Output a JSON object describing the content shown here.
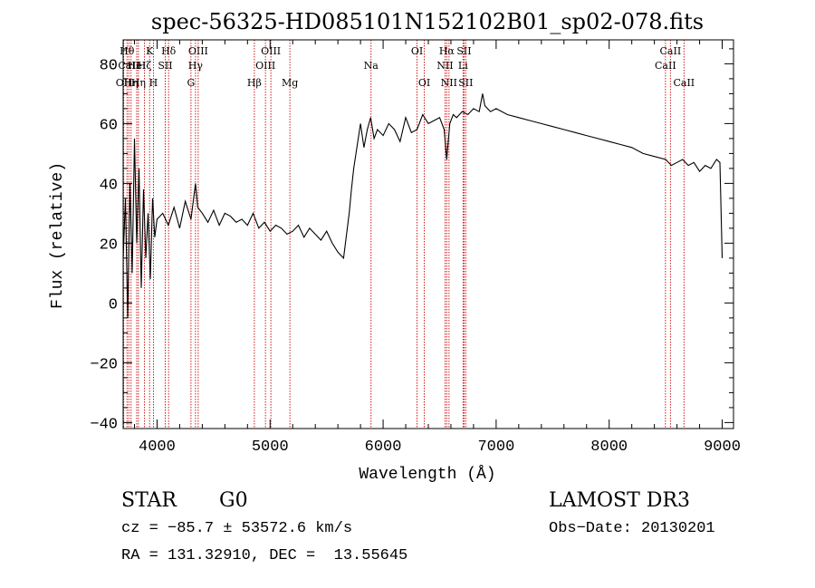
{
  "chart_data": {
    "type": "line",
    "title": "spec-56325-HD085101N152102B01_sp02-078.fits",
    "xlabel": "Wavelength (Å)",
    "ylabel": "Flux (relative)",
    "xlim": [
      3700,
      9100
    ],
    "ylim": [
      -42,
      88
    ],
    "xticks": [
      4000,
      5000,
      6000,
      7000,
      8000,
      9000
    ],
    "yticks": [
      -40,
      -20,
      0,
      20,
      40,
      60,
      80
    ],
    "grid": false,
    "legend": "none",
    "line_color": "#000000",
    "marker_color": "#cc0000",
    "series": [
      {
        "x": [
          3700,
          3720,
          3740,
          3760,
          3780,
          3800,
          3820,
          3840,
          3860,
          3880,
          3900,
          3920,
          3940,
          3960,
          3980,
          4000,
          4050,
          4100,
          4150,
          4200,
          4250,
          4300,
          4340,
          4360,
          4400,
          4450,
          4500,
          4550,
          4600,
          4650,
          4700,
          4750,
          4800,
          4850,
          4900,
          4950,
          5000,
          5050,
          5100,
          5150,
          5200,
          5250,
          5300,
          5350,
          5400,
          5450,
          5500,
          5550,
          5600,
          5650,
          5700,
          5720,
          5740,
          5760,
          5780,
          5800,
          5830,
          5860,
          5890,
          5920,
          5950,
          6000,
          6050,
          6100,
          6150,
          6200,
          6250,
          6300,
          6350,
          6400,
          6450,
          6500,
          6540,
          6563,
          6590,
          6620,
          6650,
          6700,
          6750,
          6800,
          6850,
          6880,
          6900,
          6950,
          7000,
          7100,
          7200,
          7300,
          7400,
          7500,
          7600,
          7700,
          7800,
          7900,
          8000,
          8100,
          8200,
          8300,
          8400,
          8500,
          8550,
          8600,
          8650,
          8700,
          8750,
          8800,
          8850,
          8900,
          8950,
          8980,
          9000
        ],
        "y": [
          15,
          35,
          -5,
          40,
          10,
          55,
          20,
          45,
          5,
          38,
          15,
          30,
          8,
          35,
          22,
          28,
          30,
          26,
          32,
          25,
          34,
          28,
          40,
          32,
          30,
          27,
          31,
          26,
          30,
          29,
          27,
          28,
          26,
          30,
          25,
          27,
          24,
          26,
          25,
          23,
          24,
          26,
          22,
          25,
          23,
          21,
          24,
          20,
          17,
          15,
          30,
          38,
          45,
          50,
          55,
          60,
          52,
          58,
          62,
          55,
          58,
          56,
          60,
          58,
          54,
          62,
          57,
          58,
          63,
          60,
          61,
          62,
          58,
          48,
          60,
          63,
          62,
          64,
          63,
          65,
          64,
          70,
          66,
          64,
          65,
          63,
          62,
          61,
          60,
          59,
          58,
          57,
          56,
          55,
          54,
          53,
          52,
          50,
          49,
          48,
          46,
          47,
          48,
          46,
          47,
          44,
          46,
          45,
          48,
          47,
          15
        ]
      }
    ],
    "lines": [
      {
        "x": 3705,
        "top": "OII",
        "row": 3
      },
      {
        "x": 3734,
        "top": "Hθ",
        "row": 1
      },
      {
        "x": 3750,
        "top": "CaII",
        "row": 2
      },
      {
        "x": 3770,
        "top": "Hη",
        "row": 3
      },
      {
        "x": 3820,
        "top": "HeI",
        "row": 2
      },
      {
        "x": 3835,
        "top": "Hη",
        "row": 3
      },
      {
        "x": 3889,
        "top": "Hζ",
        "row": 2
      },
      {
        "x": 3934,
        "top": "K",
        "row": 1
      },
      {
        "x": 3968,
        "top": "H",
        "row": 3
      },
      {
        "x": 4072,
        "top": "SII",
        "row": 2
      },
      {
        "x": 4102,
        "top": "Hδ",
        "row": 1
      },
      {
        "x": 4300,
        "top": "G",
        "row": 3
      },
      {
        "x": 4340,
        "top": "Hγ",
        "row": 2
      },
      {
        "x": 4364,
        "top": "OIII",
        "row": 1
      },
      {
        "x": 4861,
        "top": "Hβ",
        "row": 3
      },
      {
        "x": 4959,
        "top": "OIII",
        "row": 2
      },
      {
        "x": 5007,
        "top": "OIII",
        "row": 1
      },
      {
        "x": 5175,
        "top": "Mg",
        "row": 3
      },
      {
        "x": 5893,
        "top": "Na",
        "row": 2
      },
      {
        "x": 6300,
        "top": "OI",
        "row": 1
      },
      {
        "x": 6364,
        "top": "OI",
        "row": 3
      },
      {
        "x": 6548,
        "top": "NII",
        "row": 2
      },
      {
        "x": 6563,
        "top": "Hα",
        "row": 1
      },
      {
        "x": 6583,
        "top": "NII",
        "row": 3
      },
      {
        "x": 6707,
        "top": "Li",
        "row": 2
      },
      {
        "x": 6716,
        "top": "SII",
        "row": 1
      },
      {
        "x": 6731,
        "top": "SII",
        "row": 3
      },
      {
        "x": 8498,
        "top": "CaII",
        "row": 2
      },
      {
        "x": 8542,
        "top": "CaII",
        "row": 1
      },
      {
        "x": 8662,
        "top": "CaII",
        "row": 3
      }
    ]
  },
  "info": {
    "object_class": "STAR",
    "subclass": "G0",
    "survey": "LAMOST DR3",
    "cz": "cz = −85.7 ± 53572.6 km/s",
    "obs_date": "Obs−Date: 20130201",
    "coords": "RA = 131.32910, DEC =  13.55645"
  }
}
